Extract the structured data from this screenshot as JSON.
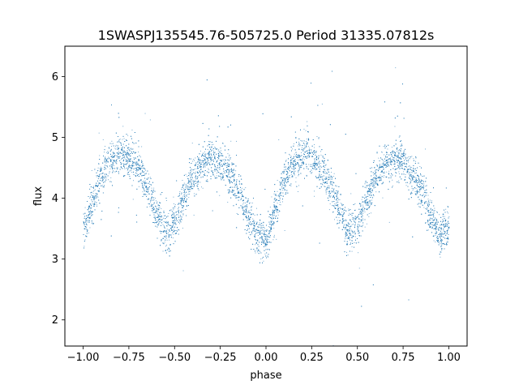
{
  "chart_data": {
    "type": "scatter",
    "title": "1SWASPJ135545.76-505725.0 Period 31335.07812s",
    "xlabel": "phase",
    "ylabel": "flux",
    "xlim": [
      -1.1,
      1.1
    ],
    "ylim": [
      1.57,
      6.5
    ],
    "grid": false,
    "legend": "none",
    "x_ticks": [
      -1.0,
      -0.75,
      -0.5,
      -0.25,
      0.0,
      0.25,
      0.5,
      0.75,
      1.0
    ],
    "x_tick_labels": [
      "−1.00",
      "−0.75",
      "−0.50",
      "−0.25",
      "0.00",
      "0.25",
      "0.50",
      "0.75",
      "1.00"
    ],
    "y_ticks": [
      2,
      3,
      4,
      5,
      6
    ],
    "y_tick_labels": [
      "2",
      "3",
      "4",
      "5",
      "6"
    ],
    "point_color": "#1f77b4",
    "series": [
      {
        "description_of_shape": "folded light curve, double-humped, repeated over two cycles",
        "x": [
          -1.0,
          -0.95,
          -0.9,
          -0.85,
          -0.8,
          -0.75,
          -0.7,
          -0.65,
          -0.6,
          -0.55,
          -0.5,
          -0.45,
          -0.4,
          -0.35,
          -0.3,
          -0.25,
          -0.2,
          -0.15,
          -0.1,
          -0.05,
          0.0,
          0.05,
          0.1,
          0.15,
          0.2,
          0.25,
          0.3,
          0.35,
          0.4,
          0.45,
          0.5,
          0.55,
          0.6,
          0.65,
          0.7,
          0.75,
          0.8,
          0.85,
          0.9,
          0.95,
          1.0
        ],
        "y": [
          3.5,
          3.95,
          4.4,
          4.62,
          4.72,
          4.68,
          4.5,
          4.2,
          3.8,
          3.45,
          3.6,
          4.0,
          4.35,
          4.58,
          4.65,
          4.6,
          4.42,
          4.1,
          3.7,
          3.4,
          3.35,
          3.8,
          4.3,
          4.6,
          4.72,
          4.68,
          4.5,
          4.2,
          3.8,
          3.45,
          3.6,
          4.0,
          4.35,
          4.58,
          4.65,
          4.6,
          4.42,
          4.1,
          3.7,
          3.4,
          3.5
        ],
        "scatter_sigma": 0.16,
        "approx_point_count": 9000
      }
    ]
  }
}
